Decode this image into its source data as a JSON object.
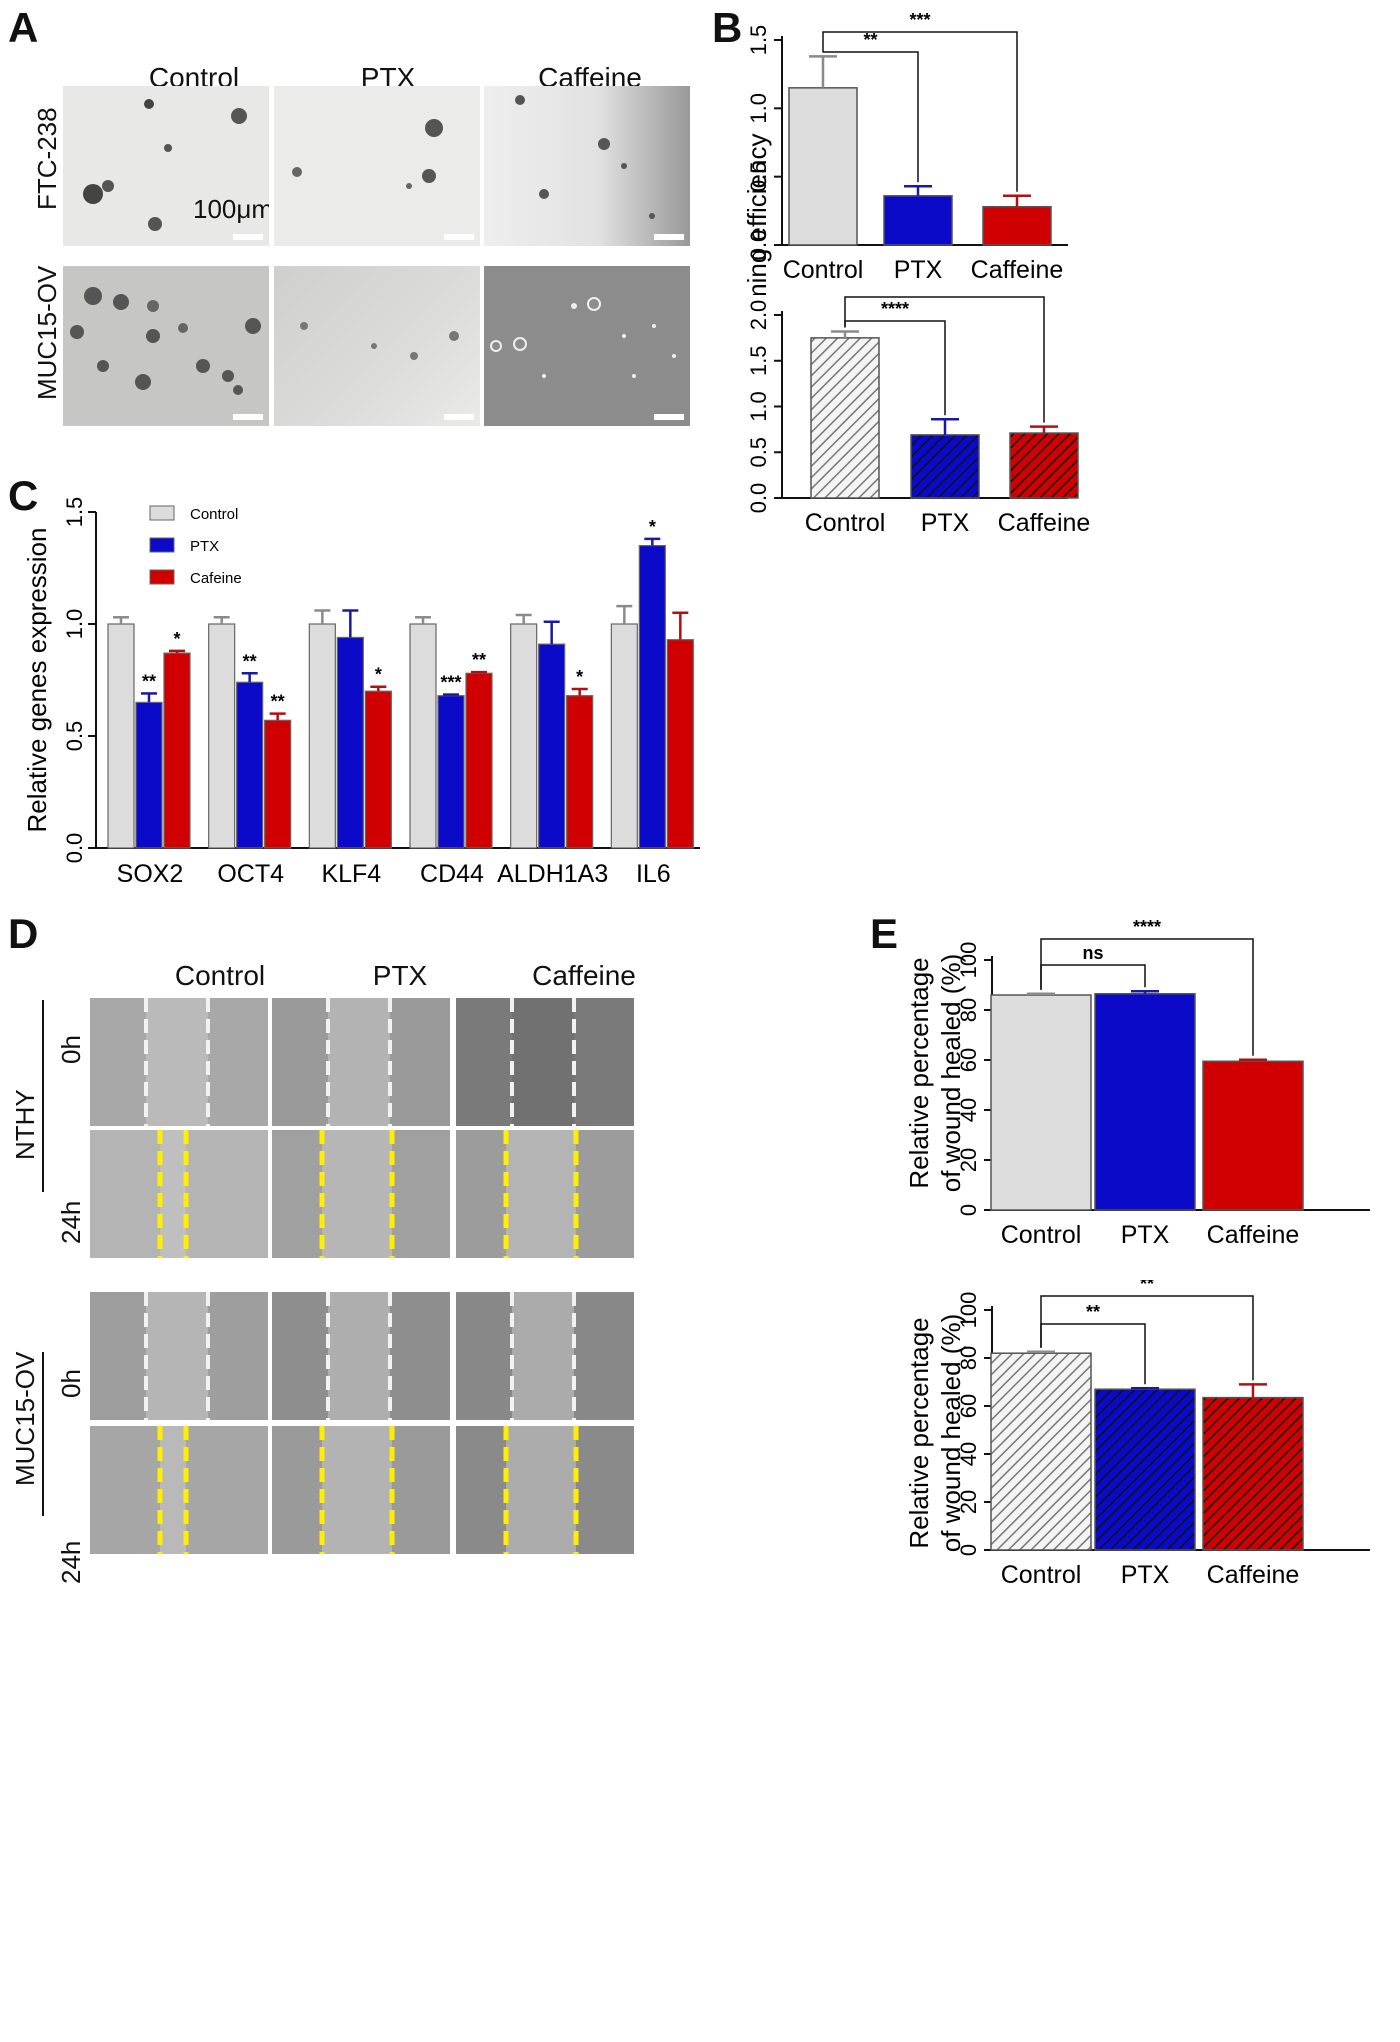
{
  "panels": {
    "A": {
      "letter": "A",
      "columns": [
        "Control",
        "PTX",
        "Caffeine"
      ],
      "rows": [
        "FTC-238",
        "MUC15-OV"
      ],
      "scale_label": "100μm"
    },
    "B": {
      "letter": "B"
    },
    "C": {
      "letter": "C"
    },
    "D": {
      "letter": "D",
      "columns": [
        "Control",
        "PTX",
        "Caffeine"
      ],
      "groups": [
        "NTHY",
        "MUC15-OV"
      ],
      "timepoints": [
        "0h",
        "24h"
      ]
    },
    "E": {
      "letter": "E"
    }
  },
  "colors": {
    "control": "#dcdcdc",
    "ptx": "#0a0ac8",
    "caffeine": "#d00000",
    "control_err": "#8a8a8a",
    "ptx_err": "#1a1aa0",
    "caffeine_err": "#b01010",
    "wound_line": "#ffee00"
  },
  "chart_data": [
    {
      "id": "B-top",
      "type": "bar",
      "categories": [
        "Control",
        "PTX",
        "Caffeine"
      ],
      "values": [
        1.15,
        0.36,
        0.28
      ],
      "errors": [
        0.23,
        0.07,
        0.08
      ],
      "ylim": [
        0,
        1.5
      ],
      "yticks": [
        "0.0",
        "0.5",
        "1.0",
        "1.5"
      ],
      "ylabel": "Sphere forming efficiency",
      "pattern": "solid",
      "significance": [
        {
          "from": 0,
          "to": 1,
          "label": "**"
        },
        {
          "from": 0,
          "to": 2,
          "label": "***"
        }
      ]
    },
    {
      "id": "B-bottom",
      "type": "bar",
      "categories": [
        "Control",
        "PTX",
        "Caffeine"
      ],
      "values": [
        1.75,
        0.69,
        0.71
      ],
      "errors": [
        0.07,
        0.17,
        0.07
      ],
      "ylim": [
        0,
        2.0
      ],
      "yticks": [
        "0.0",
        "0.5",
        "1.0",
        "1.5",
        "2.0"
      ],
      "pattern": "hatched",
      "significance": [
        {
          "from": 0,
          "to": 1,
          "label": "****"
        },
        {
          "from": 0,
          "to": 2,
          "label": "****"
        }
      ]
    },
    {
      "id": "C",
      "type": "bar",
      "categories": [
        "SOX2",
        "OCT4",
        "KLF4",
        "CD44",
        "ALDH1A3",
        "IL6"
      ],
      "series": [
        {
          "name": "Control",
          "values": [
            1.0,
            1.0,
            1.0,
            1.0,
            1.0,
            1.0
          ],
          "errors": [
            0.03,
            0.03,
            0.06,
            0.03,
            0.04,
            0.08
          ],
          "stars": [
            "",
            "",
            "",
            "",
            "",
            ""
          ]
        },
        {
          "name": "PTX",
          "values": [
            0.65,
            0.74,
            0.94,
            0.68,
            0.91,
            1.35
          ],
          "errors": [
            0.04,
            0.04,
            0.12,
            0.005,
            0.1,
            0.03
          ],
          "stars": [
            "**",
            "**",
            "",
            "***",
            "",
            "*"
          ]
        },
        {
          "name": "Cafeine",
          "values": [
            0.87,
            0.57,
            0.7,
            0.78,
            0.68,
            0.93
          ],
          "errors": [
            0.01,
            0.03,
            0.02,
            0.005,
            0.03,
            0.12
          ],
          "stars": [
            "*",
            "**",
            "*",
            "**",
            "*",
            ""
          ]
        }
      ],
      "ylim": [
        0,
        1.5
      ],
      "yticks": [
        "0.0",
        "0.5",
        "1.0",
        "1.5"
      ],
      "ylabel": "Relative genes expression",
      "legend": "top-left"
    },
    {
      "id": "E-top",
      "type": "bar",
      "categories": [
        "Control",
        "PTX",
        "Caffeine"
      ],
      "values": [
        86,
        86.5,
        59.5
      ],
      "errors": [
        0.5,
        1.0,
        0.6
      ],
      "ylim": [
        0,
        100
      ],
      "yticks": [
        "0",
        "20",
        "40",
        "60",
        "80",
        "100"
      ],
      "ylabel": [
        "Relative percentage",
        "of wound healed (%)"
      ],
      "pattern": "solid",
      "significance": [
        {
          "from": 0,
          "to": 1,
          "label": "ns"
        },
        {
          "from": 0,
          "to": 2,
          "label": "****"
        }
      ]
    },
    {
      "id": "E-bottom",
      "type": "bar",
      "categories": [
        "Control",
        "PTX",
        "Caffeine"
      ],
      "values": [
        82,
        67,
        63.5
      ],
      "errors": [
        0.6,
        0.4,
        5.5
      ],
      "ylim": [
        0,
        100
      ],
      "yticks": [
        "0",
        "20",
        "40",
        "60",
        "80",
        "100"
      ],
      "ylabel": [
        "Relative percentage",
        "of wound healed (%)"
      ],
      "pattern": "hatched",
      "significance": [
        {
          "from": 0,
          "to": 1,
          "label": "**"
        },
        {
          "from": 0,
          "to": 2,
          "label": "**"
        }
      ]
    }
  ]
}
